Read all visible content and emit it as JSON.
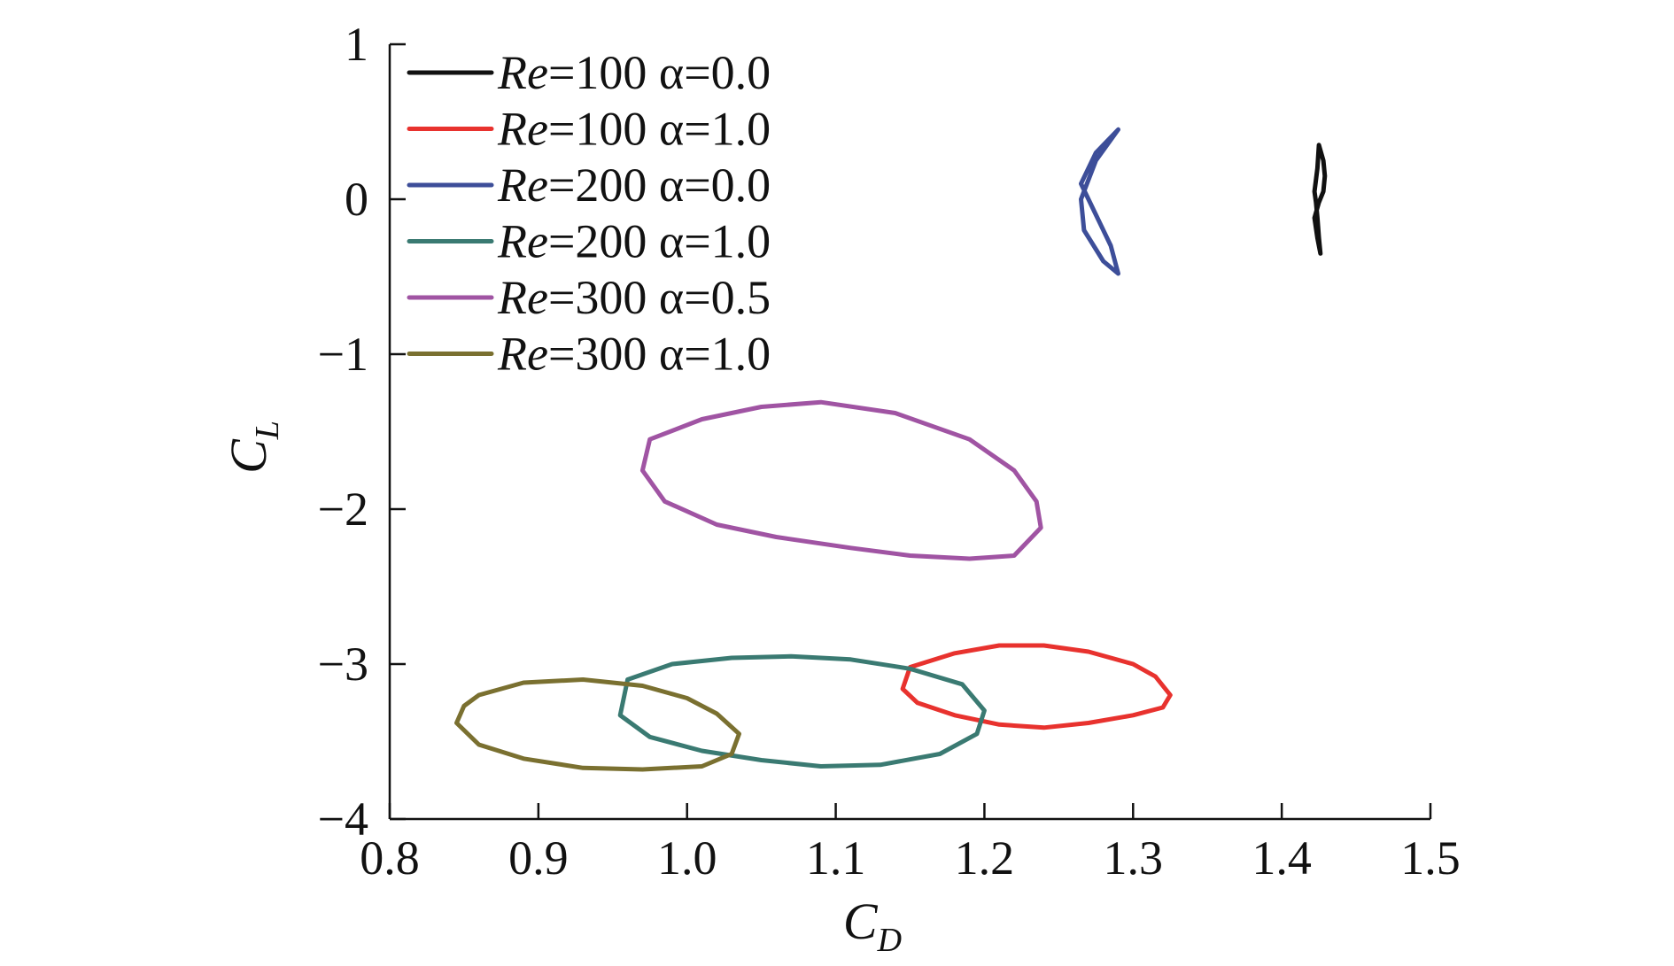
{
  "chart_data": {
    "type": "line",
    "xlabel": "C",
    "xlabel_sub": "D",
    "ylabel": "C",
    "ylabel_sub": "L",
    "xlim": [
      0.8,
      1.5
    ],
    "ylim": [
      -4,
      1
    ],
    "x_ticks": [
      0.8,
      0.9,
      1.0,
      1.1,
      1.2,
      1.3,
      1.4,
      1.5
    ],
    "x_tick_labels": [
      "0.8",
      "0.9",
      "1.0",
      "1.1",
      "1.2",
      "1.3",
      "1.4",
      "1.5"
    ],
    "y_ticks": [
      1,
      0,
      -1,
      -2,
      -3,
      -4
    ],
    "y_tick_labels": [
      "1",
      "0",
      "−1",
      "−2",
      "−3",
      "−4"
    ],
    "grid": false,
    "legend_position": "top-left",
    "series": [
      {
        "name": "Re=100 α=0.0",
        "label_italic": "Re",
        "label_rest": "=100 α=0.0",
        "color": "#111111",
        "x": [
          1.425,
          1.428,
          1.429,
          1.428,
          1.425,
          1.422,
          1.424,
          1.426,
          1.425,
          1.424,
          1.423,
          1.422,
          1.424,
          1.425
        ],
        "y": [
          0.35,
          0.25,
          0.15,
          0.05,
          -0.02,
          -0.12,
          -0.25,
          -0.35,
          -0.25,
          -0.12,
          -0.02,
          0.05,
          0.2,
          0.35
        ]
      },
      {
        "name": "Re=100 α=1.0",
        "label_italic": "Re",
        "label_rest": "=100 α=1.0",
        "color": "#e8322e",
        "x": [
          1.15,
          1.18,
          1.21,
          1.24,
          1.27,
          1.3,
          1.315,
          1.325,
          1.32,
          1.3,
          1.27,
          1.24,
          1.21,
          1.18,
          1.155,
          1.145,
          1.15
        ],
        "y": [
          -3.02,
          -2.93,
          -2.88,
          -2.88,
          -2.92,
          -3.0,
          -3.08,
          -3.2,
          -3.28,
          -3.33,
          -3.38,
          -3.41,
          -3.39,
          -3.33,
          -3.25,
          -3.16,
          -3.02
        ]
      },
      {
        "name": "Re=200 α=0.0",
        "label_italic": "Re",
        "label_rest": "=200 α=0.0",
        "color": "#3d4e99",
        "x": [
          1.29,
          1.275,
          1.265,
          1.275,
          1.285,
          1.29,
          1.28,
          1.267,
          1.265,
          1.275,
          1.29
        ],
        "y": [
          0.45,
          0.3,
          0.1,
          -0.1,
          -0.3,
          -0.48,
          -0.4,
          -0.2,
          0.0,
          0.25,
          0.45
        ]
      },
      {
        "name": "Re=200 α=1.0",
        "label_italic": "Re",
        "label_rest": "=200 α=1.0",
        "color": "#3a7a72",
        "x": [
          0.96,
          0.99,
          1.03,
          1.07,
          1.11,
          1.15,
          1.185,
          1.2,
          1.195,
          1.17,
          1.13,
          1.09,
          1.05,
          1.01,
          0.975,
          0.955,
          0.96
        ],
        "y": [
          -3.1,
          -3.0,
          -2.96,
          -2.95,
          -2.97,
          -3.03,
          -3.13,
          -3.3,
          -3.45,
          -3.58,
          -3.65,
          -3.66,
          -3.62,
          -3.56,
          -3.47,
          -3.33,
          -3.1
        ]
      },
      {
        "name": "Re=300 α=0.5",
        "label_italic": "Re",
        "label_rest": "=300 α=0.5",
        "color": "#a054a3",
        "x": [
          0.975,
          1.01,
          1.05,
          1.09,
          1.14,
          1.19,
          1.22,
          1.235,
          1.238,
          1.22,
          1.19,
          1.15,
          1.11,
          1.06,
          1.02,
          0.985,
          0.97,
          0.975
        ],
        "y": [
          -1.55,
          -1.42,
          -1.34,
          -1.31,
          -1.38,
          -1.55,
          -1.75,
          -1.95,
          -2.12,
          -2.3,
          -2.32,
          -2.3,
          -2.25,
          -2.18,
          -2.1,
          -1.95,
          -1.75,
          -1.55
        ]
      },
      {
        "name": "Re=300 α=1.0",
        "label_italic": "Re",
        "label_rest": "=300 α=1.0",
        "color": "#7a7030",
        "x": [
          0.86,
          0.89,
          0.93,
          0.97,
          1.0,
          1.02,
          1.035,
          1.03,
          1.01,
          0.97,
          0.93,
          0.89,
          0.86,
          0.845,
          0.85,
          0.86
        ],
        "y": [
          -3.2,
          -3.12,
          -3.1,
          -3.14,
          -3.22,
          -3.32,
          -3.45,
          -3.58,
          -3.66,
          -3.68,
          -3.67,
          -3.61,
          -3.52,
          -3.38,
          -3.27,
          -3.2
        ]
      }
    ]
  }
}
